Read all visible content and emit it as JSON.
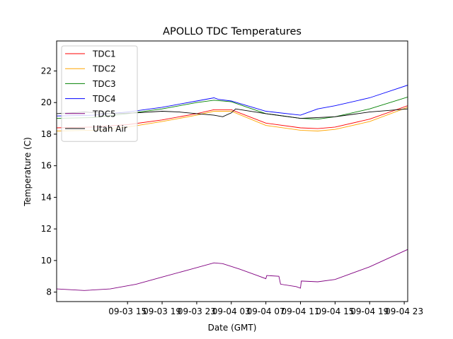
{
  "chart_data": {
    "type": "line",
    "title": "APOLLO TDC Temperatures",
    "xlabel": "Date (GMT)",
    "ylabel": "Temperature (C)",
    "xlim": [
      -4.2,
      36.4
    ],
    "ylim": [
      7.4,
      23.9
    ],
    "x_unit": "hours since 09-03 11:00 GMT",
    "xticks": [
      {
        "x": 4,
        "label": "09-03 15"
      },
      {
        "x": 8,
        "label": "09-03 19"
      },
      {
        "x": 12,
        "label": "09-03 23"
      },
      {
        "x": 16,
        "label": "09-04 03"
      },
      {
        "x": 20,
        "label": "09-04 07"
      },
      {
        "x": 24,
        "label": "09-04 11"
      },
      {
        "x": 28,
        "label": "09-04 15"
      },
      {
        "x": 32,
        "label": "09-04 19"
      },
      {
        "x": 36,
        "label": "09-04 23"
      }
    ],
    "yticks": [
      8,
      10,
      12,
      14,
      16,
      18,
      20,
      22
    ],
    "legend_position": "top-left",
    "series": [
      {
        "name": "TDC1",
        "color": "#ff0000",
        "x": [
          -4.2,
          0,
          4,
          8,
          12,
          14,
          16,
          20,
          24,
          26,
          28,
          32,
          36.4
        ],
        "y": [
          18.4,
          18.45,
          18.6,
          18.9,
          19.3,
          19.55,
          19.55,
          18.7,
          18.4,
          18.35,
          18.45,
          18.95,
          19.8
        ]
      },
      {
        "name": "TDC2",
        "color": "#ffa500",
        "x": [
          -4.2,
          0,
          4,
          8,
          12,
          14,
          16,
          20,
          24,
          26,
          28,
          32,
          36.4
        ],
        "y": [
          18.2,
          18.25,
          18.45,
          18.8,
          19.2,
          19.45,
          19.45,
          18.55,
          18.25,
          18.2,
          18.3,
          18.8,
          19.7
        ]
      },
      {
        "name": "TDC3",
        "color": "#008000",
        "x": [
          -4.2,
          0,
          4,
          8,
          12,
          14,
          16,
          20,
          24,
          26,
          28,
          32,
          36.4
        ],
        "y": [
          19.0,
          19.05,
          19.3,
          19.6,
          20.0,
          20.15,
          20.05,
          19.3,
          19.0,
          18.95,
          19.1,
          19.6,
          20.35
        ]
      },
      {
        "name": "TDC4",
        "color": "#0000ff",
        "x": [
          -4.2,
          0,
          4,
          8,
          12,
          14,
          14.5,
          16,
          20,
          24,
          26,
          28,
          32,
          36.4
        ],
        "y": [
          19.15,
          19.2,
          19.4,
          19.7,
          20.1,
          20.3,
          20.2,
          20.1,
          19.45,
          19.2,
          19.6,
          19.8,
          20.3,
          21.1
        ]
      },
      {
        "name": "TDC5",
        "color": "#800080",
        "x": [
          -4.2,
          -1,
          2,
          5,
          8,
          11,
          14,
          15,
          17,
          19,
          20,
          20.1,
          21.5,
          21.7,
          23.5,
          24,
          24.1,
          26,
          28,
          32,
          36.4
        ],
        "y": [
          8.2,
          8.1,
          8.2,
          8.5,
          8.95,
          9.4,
          9.85,
          9.8,
          9.45,
          9.05,
          8.85,
          9.05,
          9.0,
          8.5,
          8.35,
          8.25,
          8.7,
          8.65,
          8.8,
          9.6,
          10.7
        ]
      },
      {
        "name": "Utah Air",
        "color": "#000000",
        "x": [
          -4.2,
          -1,
          2,
          5,
          8,
          10,
          12,
          14,
          15,
          16,
          16.5,
          20,
          24,
          28,
          30,
          32,
          36.4
        ],
        "y": [
          19.3,
          19.4,
          19.3,
          19.35,
          19.45,
          19.4,
          19.3,
          19.2,
          19.1,
          19.35,
          19.6,
          19.3,
          19.0,
          19.1,
          19.25,
          19.4,
          19.6
        ]
      }
    ]
  }
}
